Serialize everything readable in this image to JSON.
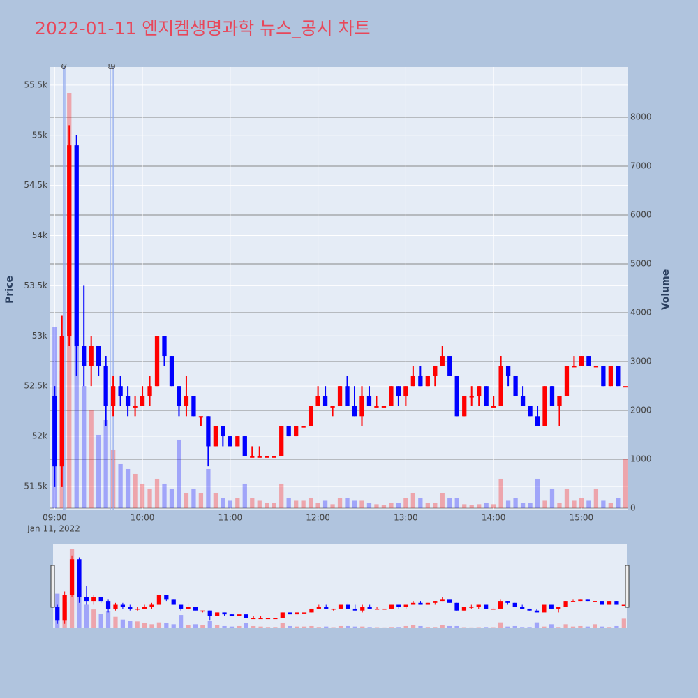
{
  "chart_data": {
    "type": "candlestick",
    "title": "2022-01-11 엔지켐생명과학 뉴스_공시 차트",
    "y_label": "Price",
    "y2_label": "Volume",
    "x_date_label": "Jan 11, 2022",
    "x": [
      "2022-01-11 09:00",
      "2022-01-11 09:05",
      "2022-01-11 09:10",
      "2022-01-11 09:15",
      "2022-01-11 09:20",
      "2022-01-11 09:25",
      "2022-01-11 09:30",
      "2022-01-11 09:35",
      "2022-01-11 09:40",
      "2022-01-11 09:45",
      "2022-01-11 09:50",
      "2022-01-11 09:55",
      "2022-01-11 10:00",
      "2022-01-11 10:05",
      "2022-01-11 10:10",
      "2022-01-11 10:15",
      "2022-01-11 10:20",
      "2022-01-11 10:25",
      "2022-01-11 10:30",
      "2022-01-11 10:35",
      "2022-01-11 10:40",
      "2022-01-11 10:45",
      "2022-01-11 10:50",
      "2022-01-11 10:55",
      "2022-01-11 11:00",
      "2022-01-11 11:05",
      "2022-01-11 11:10",
      "2022-01-11 11:15",
      "2022-01-11 11:20",
      "2022-01-11 11:25",
      "2022-01-11 11:30",
      "2022-01-11 11:35",
      "2022-01-11 11:40",
      "2022-01-11 11:45",
      "2022-01-11 11:50",
      "2022-01-11 11:55",
      "2022-01-11 12:00",
      "2022-01-11 12:05",
      "2022-01-11 12:10",
      "2022-01-11 12:15",
      "2022-01-11 12:20",
      "2022-01-11 12:25",
      "2022-01-11 12:30",
      "2022-01-11 12:35",
      "2022-01-11 12:40",
      "2022-01-11 12:45",
      "2022-01-11 12:50",
      "2022-01-11 12:55",
      "2022-01-11 13:00",
      "2022-01-11 13:05",
      "2022-01-11 13:10",
      "2022-01-11 13:15",
      "2022-01-11 13:20",
      "2022-01-11 13:25",
      "2022-01-11 13:30",
      "2022-01-11 13:35",
      "2022-01-11 13:40",
      "2022-01-11 13:45",
      "2022-01-11 13:50",
      "2022-01-11 13:55",
      "2022-01-11 14:00",
      "2022-01-11 14:05",
      "2022-01-11 14:10",
      "2022-01-11 14:15",
      "2022-01-11 14:20",
      "2022-01-11 14:25",
      "2022-01-11 14:30",
      "2022-01-11 14:35",
      "2022-01-11 14:40",
      "2022-01-11 14:45",
      "2022-01-11 14:50",
      "2022-01-11 14:55",
      "2022-01-11 15:00",
      "2022-01-11 15:05",
      "2022-01-11 15:10",
      "2022-01-11 15:15",
      "2022-01-11 15:20",
      "2022-01-11 15:25",
      "2022-01-11 15:30"
    ],
    "open": [
      52400,
      51700,
      53000,
      54900,
      52900,
      52700,
      52900,
      52700,
      52300,
      52500,
      52400,
      52300,
      52300,
      52400,
      52500,
      53000,
      52800,
      52500,
      52300,
      52400,
      52200,
      52200,
      51900,
      52100,
      52000,
      51900,
      52000,
      51800,
      51800,
      51800,
      51800,
      51800,
      52100,
      52000,
      52100,
      52100,
      52300,
      52400,
      52300,
      52300,
      52500,
      52300,
      52200,
      52400,
      52300,
      52300,
      52300,
      52500,
      52400,
      52500,
      52600,
      52500,
      52600,
      52700,
      52800,
      52600,
      52200,
      52400,
      52400,
      52500,
      52300,
      52300,
      52700,
      52600,
      52400,
      52300,
      52200,
      52100,
      52500,
      52300,
      52400,
      52700,
      52700,
      52800,
      52700,
      52700,
      52500,
      52700,
      52500
    ],
    "high": [
      52500,
      53200,
      55100,
      55000,
      53500,
      53000,
      52900,
      52800,
      52600,
      52600,
      52500,
      52400,
      52500,
      52600,
      53000,
      53000,
      52800,
      52500,
      52600,
      52400,
      52200,
      52200,
      52100,
      52100,
      52000,
      52000,
      52000,
      51900,
      51900,
      51800,
      51800,
      52100,
      52100,
      52100,
      52100,
      52300,
      52500,
      52500,
      52300,
      52500,
      52600,
      52500,
      52500,
      52500,
      52400,
      52300,
      52500,
      52500,
      52500,
      52700,
      52700,
      52600,
      52700,
      52900,
      52800,
      52600,
      52400,
      52500,
      52500,
      52500,
      52400,
      52800,
      52700,
      52600,
      52500,
      52300,
      52300,
      52500,
      52500,
      52400,
      52700,
      52800,
      52800,
      52800,
      52700,
      52700,
      52700,
      52700,
      52500
    ],
    "low": [
      51500,
      51500,
      52900,
      52600,
      52500,
      52500,
      52600,
      52100,
      52200,
      52300,
      52200,
      52200,
      52300,
      52300,
      52500,
      52700,
      52500,
      52200,
      52200,
      52200,
      52100,
      51700,
      51900,
      51900,
      51900,
      51900,
      51800,
      51800,
      51800,
      51800,
      51800,
      51800,
      52000,
      52000,
      52100,
      52100,
      52300,
      52300,
      52200,
      52300,
      52300,
      52200,
      52100,
      52300,
      52300,
      52300,
      52300,
      52300,
      52300,
      52500,
      52500,
      52500,
      52500,
      52700,
      52600,
      52200,
      52200,
      52300,
      52300,
      52300,
      52300,
      52300,
      52500,
      52400,
      52300,
      52200,
      52100,
      52100,
      52300,
      52100,
      52400,
      52700,
      52700,
      52700,
      52700,
      52500,
      52500,
      52500,
      52500
    ],
    "close": [
      51700,
      53000,
      54900,
      52900,
      52700,
      52900,
      52700,
      52300,
      52500,
      52400,
      52300,
      52300,
      52400,
      52500,
      53000,
      52800,
      52500,
      52300,
      52400,
      52200,
      52200,
      51900,
      52100,
      52000,
      51900,
      52000,
      51800,
      51800,
      51800,
      51800,
      51800,
      52100,
      52000,
      52100,
      52100,
      52300,
      52400,
      52300,
      52300,
      52500,
      52300,
      52200,
      52400,
      52300,
      52300,
      52300,
      52500,
      52400,
      52500,
      52600,
      52500,
      52600,
      52700,
      52800,
      52600,
      52200,
      52400,
      52400,
      52500,
      52300,
      52300,
      52700,
      52600,
      52400,
      52300,
      52200,
      52100,
      52500,
      52300,
      52400,
      52700,
      52700,
      52800,
      52700,
      52700,
      52500,
      52700,
      52500,
      52500
    ],
    "volume": [
      3700,
      2800,
      8500,
      4500,
      2500,
      2000,
      1500,
      1800,
      1200,
      900,
      800,
      700,
      500,
      400,
      600,
      500,
      400,
      1400,
      300,
      400,
      300,
      800,
      300,
      200,
      150,
      200,
      500,
      200,
      150,
      100,
      100,
      500,
      200,
      150,
      150,
      200,
      100,
      150,
      80,
      200,
      200,
      150,
      150,
      100,
      80,
      60,
      100,
      100,
      200,
      300,
      200,
      100,
      100,
      300,
      200,
      200,
      80,
      60,
      80,
      100,
      80,
      600,
      150,
      200,
      100,
      100,
      600,
      150,
      400,
      100,
      400,
      150,
      200,
      150,
      400,
      150,
      100,
      200,
      1000
    ],
    "increasing_color": "#ff0000",
    "decreasing_color": "#0000ff",
    "xlim": [
      "2022-01-11 08:57",
      "2022-01-11 15:32"
    ],
    "xticks": [
      {
        "value": "2022-01-11 09:00",
        "label": "09:00"
      },
      {
        "value": "2022-01-11 10:00",
        "label": "10:00"
      },
      {
        "value": "2022-01-11 11:00",
        "label": "11:00"
      },
      {
        "value": "2022-01-11 12:00",
        "label": "12:00"
      },
      {
        "value": "2022-01-11 13:00",
        "label": "13:00"
      },
      {
        "value": "2022-01-11 14:00",
        "label": "14:00"
      },
      {
        "value": "2022-01-11 15:00",
        "label": "15:00"
      }
    ],
    "ylim": [
      51270,
      55680
    ],
    "yticks": [
      {
        "value": 51500,
        "label": "51.5k"
      },
      {
        "value": 52000,
        "label": "52k"
      },
      {
        "value": 52500,
        "label": "52.5k"
      },
      {
        "value": 53000,
        "label": "53k"
      },
      {
        "value": 53500,
        "label": "53.5k"
      },
      {
        "value": 54000,
        "label": "54k"
      },
      {
        "value": 54500,
        "label": "54.5k"
      },
      {
        "value": 55000,
        "label": "55k"
      },
      {
        "value": 55500,
        "label": "55.5k"
      }
    ],
    "y2lim": [
      -29,
      9029
    ],
    "y2ticks": [
      0,
      1000,
      2000,
      3000,
      4000,
      5000,
      6000,
      7000,
      8000
    ],
    "markers": [
      {
        "x": "2022-01-11 09:06",
        "label": "6"
      },
      {
        "x": "2022-01-11 09:07",
        "label": "7"
      },
      {
        "x": "2022-01-11 09:38",
        "label": "8"
      },
      {
        "x": "2022-01-11 09:40",
        "label": "9"
      }
    ],
    "grid": true,
    "range_slider": true
  }
}
